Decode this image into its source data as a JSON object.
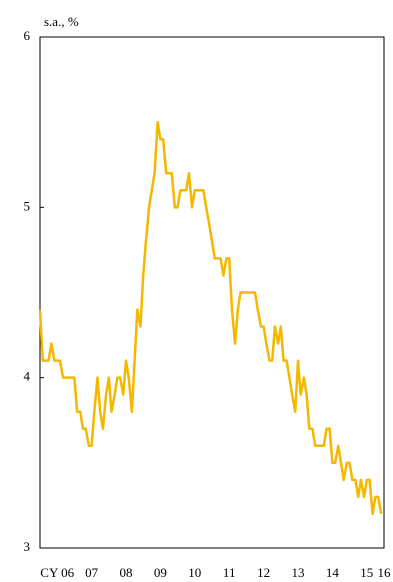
{
  "chart_data": {
    "type": "line",
    "ylabel": "s.a., %",
    "color": "#f5b800",
    "x": [
      2006.0,
      2006.08,
      2006.17,
      2006.25,
      2006.33,
      2006.42,
      2006.5,
      2006.58,
      2006.67,
      2006.75,
      2006.83,
      2006.92,
      2007.0,
      2007.08,
      2007.17,
      2007.25,
      2007.33,
      2007.42,
      2007.5,
      2007.58,
      2007.67,
      2007.75,
      2007.83,
      2007.92,
      2008.0,
      2008.08,
      2008.17,
      2008.25,
      2008.33,
      2008.42,
      2008.5,
      2008.58,
      2008.67,
      2008.75,
      2008.83,
      2008.92,
      2009.0,
      2009.08,
      2009.17,
      2009.25,
      2009.33,
      2009.42,
      2009.5,
      2009.58,
      2009.67,
      2009.75,
      2009.83,
      2009.92,
      2010.0,
      2010.08,
      2010.17,
      2010.25,
      2010.33,
      2010.42,
      2010.5,
      2010.58,
      2010.67,
      2010.75,
      2010.83,
      2010.92,
      2011.0,
      2011.08,
      2011.17,
      2011.25,
      2011.33,
      2011.42,
      2011.5,
      2011.58,
      2011.67,
      2011.75,
      2011.83,
      2011.92,
      2012.0,
      2012.08,
      2012.17,
      2012.25,
      2012.33,
      2012.42,
      2012.5,
      2012.58,
      2012.67,
      2012.75,
      2012.83,
      2012.92,
      2013.0,
      2013.08,
      2013.17,
      2013.25,
      2013.33,
      2013.42,
      2013.5,
      2013.58,
      2013.67,
      2013.75,
      2013.83,
      2013.92,
      2014.0,
      2014.08,
      2014.17,
      2014.25,
      2014.33,
      2014.42,
      2014.5,
      2014.58,
      2014.67,
      2014.75,
      2014.83,
      2014.92,
      2015.0,
      2015.08,
      2015.17,
      2015.25,
      2015.33,
      2015.42,
      2015.5,
      2015.58,
      2015.67,
      2015.75,
      2015.83,
      2015.92
    ],
    "values": [
      4.4,
      4.1,
      4.1,
      4.1,
      4.2,
      4.1,
      4.1,
      4.1,
      4.0,
      4.0,
      4.0,
      4.0,
      4.0,
      3.8,
      3.8,
      3.7,
      3.7,
      3.6,
      3.6,
      3.8,
      4.0,
      3.8,
      3.7,
      3.9,
      4.0,
      3.8,
      3.9,
      4.0,
      4.0,
      3.9,
      4.1,
      4.0,
      3.8,
      4.1,
      4.4,
      4.3,
      4.6,
      4.8,
      5.0,
      5.1,
      5.2,
      5.5,
      5.4,
      5.4,
      5.2,
      5.2,
      5.2,
      5.0,
      5.0,
      5.1,
      5.1,
      5.1,
      5.2,
      5.0,
      5.1,
      5.1,
      5.1,
      5.1,
      5.0,
      4.9,
      4.8,
      4.7,
      4.7,
      4.7,
      4.6,
      4.7,
      4.7,
      4.4,
      4.2,
      4.4,
      4.5,
      4.5,
      4.5,
      4.5,
      4.5,
      4.5,
      4.4,
      4.3,
      4.3,
      4.2,
      4.1,
      4.1,
      4.3,
      4.2,
      4.3,
      4.1,
      4.1,
      4.0,
      3.9,
      3.8,
      4.1,
      3.9,
      4.0,
      3.9,
      3.7,
      3.7,
      3.6,
      3.6,
      3.6,
      3.6,
      3.7,
      3.7,
      3.5,
      3.5,
      3.6,
      3.5,
      3.4,
      3.5,
      3.5,
      3.4,
      3.4,
      3.3,
      3.4,
      3.3,
      3.4,
      3.4,
      3.2,
      3.3,
      3.3,
      3.2
    ],
    "xlim": [
      2006,
      2016
    ],
    "xticks": [
      {
        "value": 2006.5,
        "label": "CY 06"
      },
      {
        "value": 2007.5,
        "label": "07"
      },
      {
        "value": 2008.5,
        "label": "08"
      },
      {
        "value": 2009.5,
        "label": "09"
      },
      {
        "value": 2010.5,
        "label": "10"
      },
      {
        "value": 2011.5,
        "label": "11"
      },
      {
        "value": 2012.5,
        "label": "12"
      },
      {
        "value": 2013.5,
        "label": "13"
      },
      {
        "value": 2014.5,
        "label": "14"
      },
      {
        "value": 2015.5,
        "label": "15"
      },
      {
        "value": 2016,
        "label": "16"
      }
    ],
    "ylim": [
      3,
      6
    ],
    "yticks": [
      3,
      4,
      5,
      6
    ]
  }
}
